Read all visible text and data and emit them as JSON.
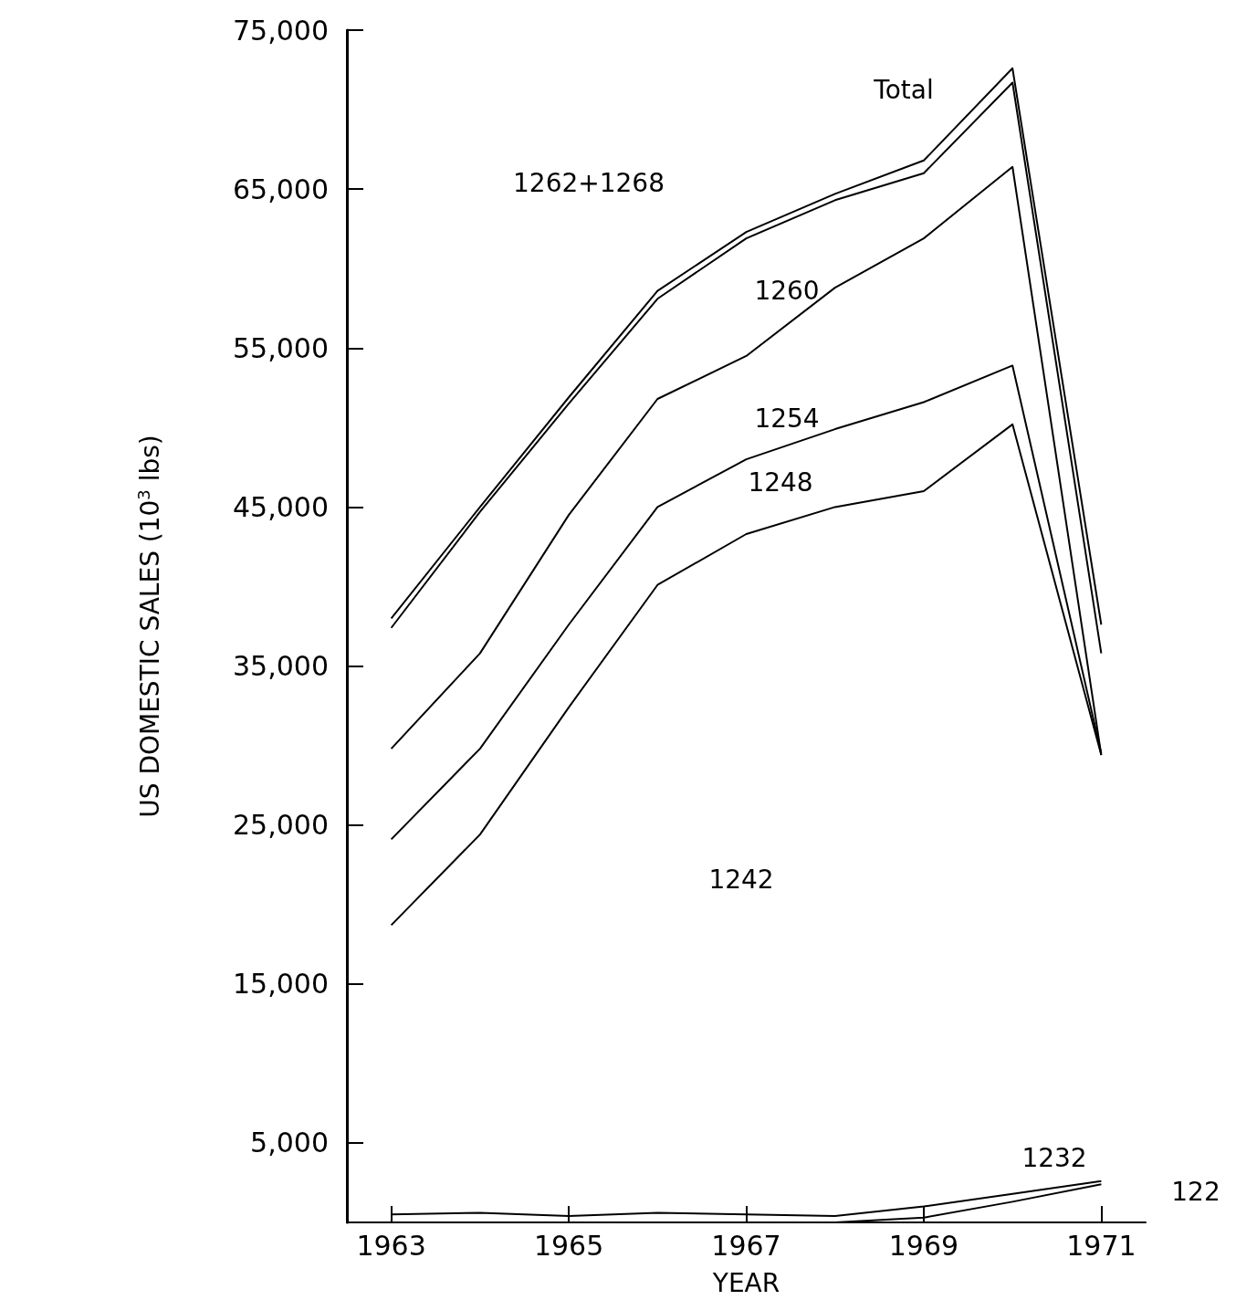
{
  "chart_data": {
    "type": "line",
    "xlabel": "YEAR",
    "ylabel": "US DOMESTIC SALES (10$^{3}$ lbs)",
    "x": [
      1963,
      1964,
      1965,
      1966,
      1967,
      1968,
      1969,
      1970,
      1971
    ],
    "series": [
      {
        "color": "#000000",
        "values": [
          38000,
          45000,
          51900,
          58600,
          62300,
          64700,
          66800,
          72600,
          37600
        ]
      },
      {
        "color": "#000000",
        "values": [
          37400,
          44700,
          51500,
          58100,
          61900,
          64300,
          66000,
          71700,
          35800
        ]
      },
      {
        "color": "#000000",
        "values": [
          29800,
          35800,
          44500,
          51800,
          54500,
          58800,
          61900,
          66400,
          29400
        ]
      },
      {
        "color": "#000000",
        "values": [
          24100,
          29800,
          37600,
          45000,
          48000,
          49900,
          51600,
          53900,
          29500
        ]
      },
      {
        "color": "#000000",
        "values": [
          18700,
          24400,
          32400,
          40100,
          43300,
          45000,
          46000,
          50200,
          29400
        ]
      },
      {
        "color": "#000000",
        "values": [
          500,
          600,
          400,
          600,
          500,
          400,
          1000,
          1800,
          2600
        ]
      },
      {
        "color": "#000000",
        "values": [
          null,
          null,
          null,
          null,
          null,
          0,
          300,
          1300,
          2400
        ]
      }
    ],
    "xlim": [
      1962.5,
      1971.5
    ],
    "xticks": [
      1963,
      1965,
      1967,
      1969,
      1971
    ],
    "ylim": [
      0,
      75000
    ],
    "yticks": [
      {
        "value": 5000,
        "label": "5,000"
      },
      {
        "value": 15000,
        "label": "15,000"
      },
      {
        "value": 25000,
        "label": "25,000"
      },
      {
        "value": 35000,
        "label": "35,000"
      },
      {
        "value": 45000,
        "label": "45,000"
      },
      {
        "value": 55000,
        "label": "55,000"
      },
      {
        "value": 65000,
        "label": "65,000"
      },
      {
        "value": 75000,
        "label": "75,000"
      }
    ],
    "annotations": [
      "Total",
      "1262+1268",
      "1260",
      "1254",
      "1248",
      "1242",
      "1232",
      "122"
    ],
    "grid": false,
    "marker": "none",
    "line_style": "solid"
  }
}
